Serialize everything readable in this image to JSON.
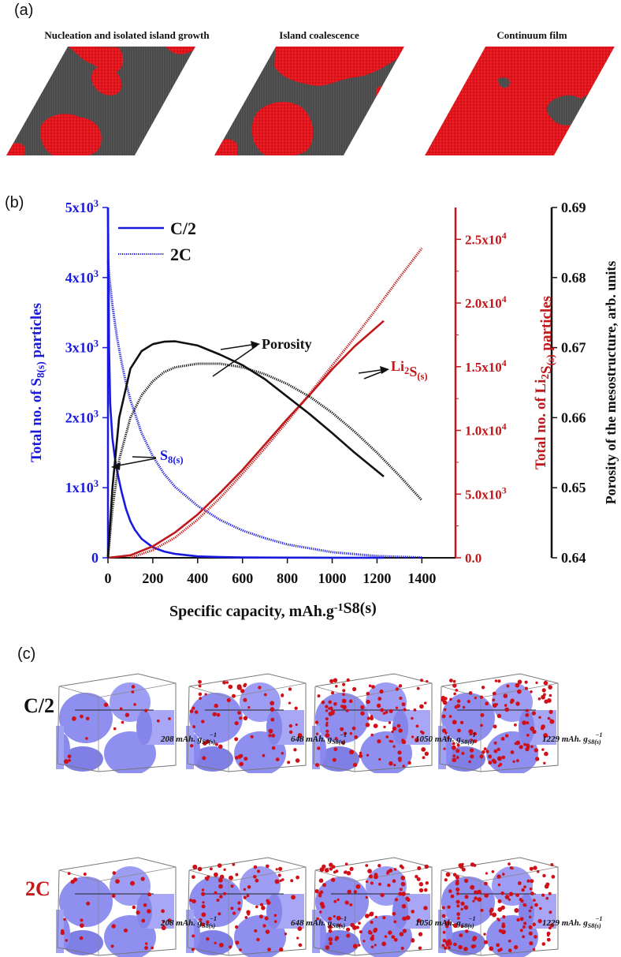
{
  "panel_a": {
    "label": "(a)",
    "stages": [
      "Nucleation and isolated island growth",
      "Island coalescence",
      "Continuum film"
    ]
  },
  "panel_b": {
    "label": "(b)"
  },
  "panel_c": {
    "label": "(c)",
    "rows": [
      {
        "label": "C/2",
        "color": "#111111"
      },
      {
        "label": "2C",
        "color": "#c0181b"
      }
    ],
    "capacity_values": [
      "208",
      "648",
      "1050",
      "1229"
    ],
    "capacity_unit": "mAh. g",
    "capacity_sub": "S8(s)",
    "capacity_sup": "−1"
  },
  "colors": {
    "blue": "#1a1adf",
    "red": "#c0181b",
    "black": "#111111",
    "film_red": "#e3141c",
    "substrate": "#4a4a4a",
    "cube_face": "#8f8ff0"
  },
  "chart_data": {
    "type": "line",
    "x": {
      "label": "Specific capacity, mAh.g",
      "label_sup": "-1",
      "label_sub": "S8(s)",
      "ticks": [
        "0",
        "200",
        "400",
        "600",
        "800",
        "1000",
        "1200",
        "1400"
      ],
      "range": [
        0,
        1550
      ]
    },
    "y_left": {
      "label": "Total no. of S8(s) particles",
      "ticks": [
        "0",
        "1x10³",
        "2x10³",
        "3x10³",
        "4x10³",
        "5x10³"
      ],
      "range": [
        0,
        5000
      ],
      "color": "#1a1adf"
    },
    "y_right_1": {
      "label": "Total no. of Li2S(s) particles",
      "ticks": [
        "0.0",
        "5.0x10³",
        "1.0x10⁴",
        "1.5x10⁴",
        "2.0x10⁴",
        "2.5x10⁴"
      ],
      "range": [
        0,
        27500
      ],
      "color": "#c0181b"
    },
    "y_right_2": {
      "label": "Porosity of the mesostructure, arb. units",
      "ticks": [
        "0.64",
        "0.65",
        "0.66",
        "0.67",
        "0.68",
        "0.69"
      ],
      "range": [
        0.64,
        0.69
      ],
      "color": "#111111"
    },
    "legend": [
      {
        "name": "C/2",
        "style": "solid"
      },
      {
        "name": "2C",
        "style": "dotted"
      }
    ],
    "annotations": [
      "Porosity",
      "Li2S(s)",
      "S8(s)"
    ],
    "series": [
      {
        "quantity": "S8(s)",
        "axis": "left",
        "rate": "C/2",
        "x": [
          0,
          5,
          10,
          20,
          30,
          40,
          50,
          60,
          80,
          100,
          120,
          150,
          200,
          250,
          300,
          400,
          500,
          600,
          800,
          1000,
          1230
        ],
        "y": [
          5000,
          3000,
          2200,
          1700,
          1450,
          1250,
          1100,
          950,
          700,
          520,
          400,
          270,
          150,
          90,
          55,
          20,
          10,
          5,
          2,
          1,
          0
        ]
      },
      {
        "quantity": "S8(s)",
        "axis": "left",
        "rate": "2C",
        "x": [
          0,
          5,
          10,
          20,
          40,
          60,
          80,
          100,
          150,
          200,
          250,
          300,
          400,
          500,
          600,
          700,
          800,
          1000,
          1200,
          1400
        ],
        "y": [
          4250,
          4050,
          3900,
          3600,
          3150,
          2800,
          2500,
          2250,
          1780,
          1450,
          1200,
          1010,
          740,
          540,
          390,
          280,
          190,
          80,
          25,
          5
        ]
      },
      {
        "quantity": "Li2S(s)",
        "axis": "right_1",
        "rate": "C/2",
        "x": [
          0,
          100,
          200,
          300,
          400,
          500,
          600,
          700,
          800,
          900,
          1000,
          1100,
          1230
        ],
        "y": [
          0,
          200,
          900,
          2000,
          3400,
          5100,
          6900,
          8900,
          10900,
          12800,
          14800,
          16600,
          18600
        ]
      },
      {
        "quantity": "Li2S(s)",
        "axis": "right_1",
        "rate": "2C",
        "x": [
          100,
          200,
          300,
          400,
          500,
          600,
          700,
          800,
          900,
          1000,
          1100,
          1200,
          1300,
          1400
        ],
        "y": [
          0,
          600,
          1600,
          3000,
          4700,
          6600,
          8600,
          10700,
          12900,
          15100,
          17300,
          19600,
          22000,
          24300
        ]
      },
      {
        "quantity": "Porosity",
        "axis": "right_2",
        "rate": "C/2",
        "x": [
          0,
          20,
          50,
          100,
          150,
          200,
          250,
          300,
          400,
          500,
          600,
          700,
          800,
          900,
          1000,
          1100,
          1230
        ],
        "y": [
          0.64,
          0.65,
          0.66,
          0.667,
          0.6695,
          0.6705,
          0.67085,
          0.6709,
          0.6703,
          0.669,
          0.6675,
          0.6655,
          0.663,
          0.6605,
          0.6578,
          0.655,
          0.6516
        ]
      },
      {
        "quantity": "Porosity",
        "axis": "right_2",
        "rate": "2C",
        "x": [
          0,
          20,
          50,
          100,
          150,
          200,
          250,
          300,
          400,
          500,
          600,
          700,
          800,
          900,
          1000,
          1100,
          1200,
          1300,
          1400
        ],
        "y": [
          0.64,
          0.647,
          0.654,
          0.66,
          0.6632,
          0.6652,
          0.6665,
          0.6672,
          0.6677,
          0.6677,
          0.6672,
          0.6662,
          0.6648,
          0.663,
          0.6607,
          0.658,
          0.655,
          0.6517,
          0.6482
        ]
      }
    ]
  }
}
